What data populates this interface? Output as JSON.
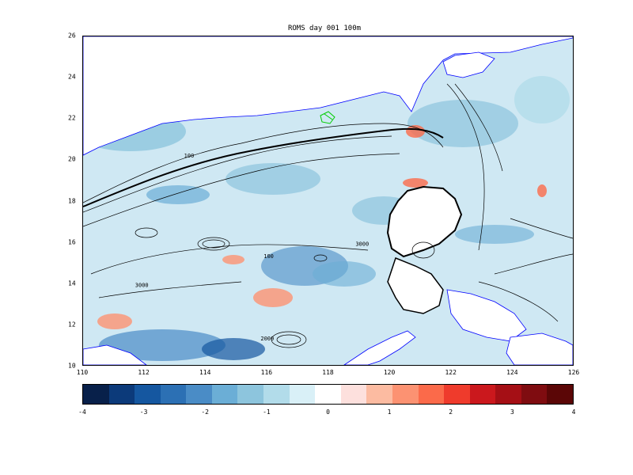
{
  "title": "ROMS  day  001 100m",
  "map": {
    "x_ticks": [
      "110",
      "112",
      "114",
      "116",
      "118",
      "120",
      "122",
      "124",
      "126"
    ],
    "y_ticks": [
      "26",
      "24",
      "22",
      "20",
      "18",
      "16",
      "14",
      "12",
      "10"
    ],
    "xlim": [
      110,
      126
    ],
    "ylim": [
      10,
      26
    ],
    "contour_labels": [
      {
        "text": "100",
        "lon": 113.3,
        "lat": 20.1
      },
      {
        "text": "3000",
        "lon": 111.7,
        "lat": 13.8
      },
      {
        "text": "3000",
        "lon": 118.9,
        "lat": 15.8
      },
      {
        "text": "2000",
        "lon": 115.8,
        "lat": 11.2
      },
      {
        "text": "100",
        "lon": 115.9,
        "lat": 15.2
      }
    ],
    "colors": {
      "land": "#ffffff",
      "ocean_base": "#cfe8f3",
      "coastline": "#0000ff",
      "contour": "#000000",
      "marker": "#00cc00"
    }
  },
  "colorbar": {
    "tick_labels": [
      "-4",
      "-3",
      "-2",
      "-1",
      "0",
      "1",
      "2",
      "3",
      "4"
    ],
    "colors": [
      "#08204a",
      "#0c3a7a",
      "#1557a0",
      "#2c70b4",
      "#4a8cc6",
      "#6baed6",
      "#8dc5dd",
      "#b2dcea",
      "#d9f0f7",
      "#ffffff",
      "#fde0dd",
      "#fcbba1",
      "#fc9272",
      "#fb6a4a",
      "#ef3b2c",
      "#cb181d",
      "#a50f15",
      "#7f0c10",
      "#5b0606"
    ]
  }
}
